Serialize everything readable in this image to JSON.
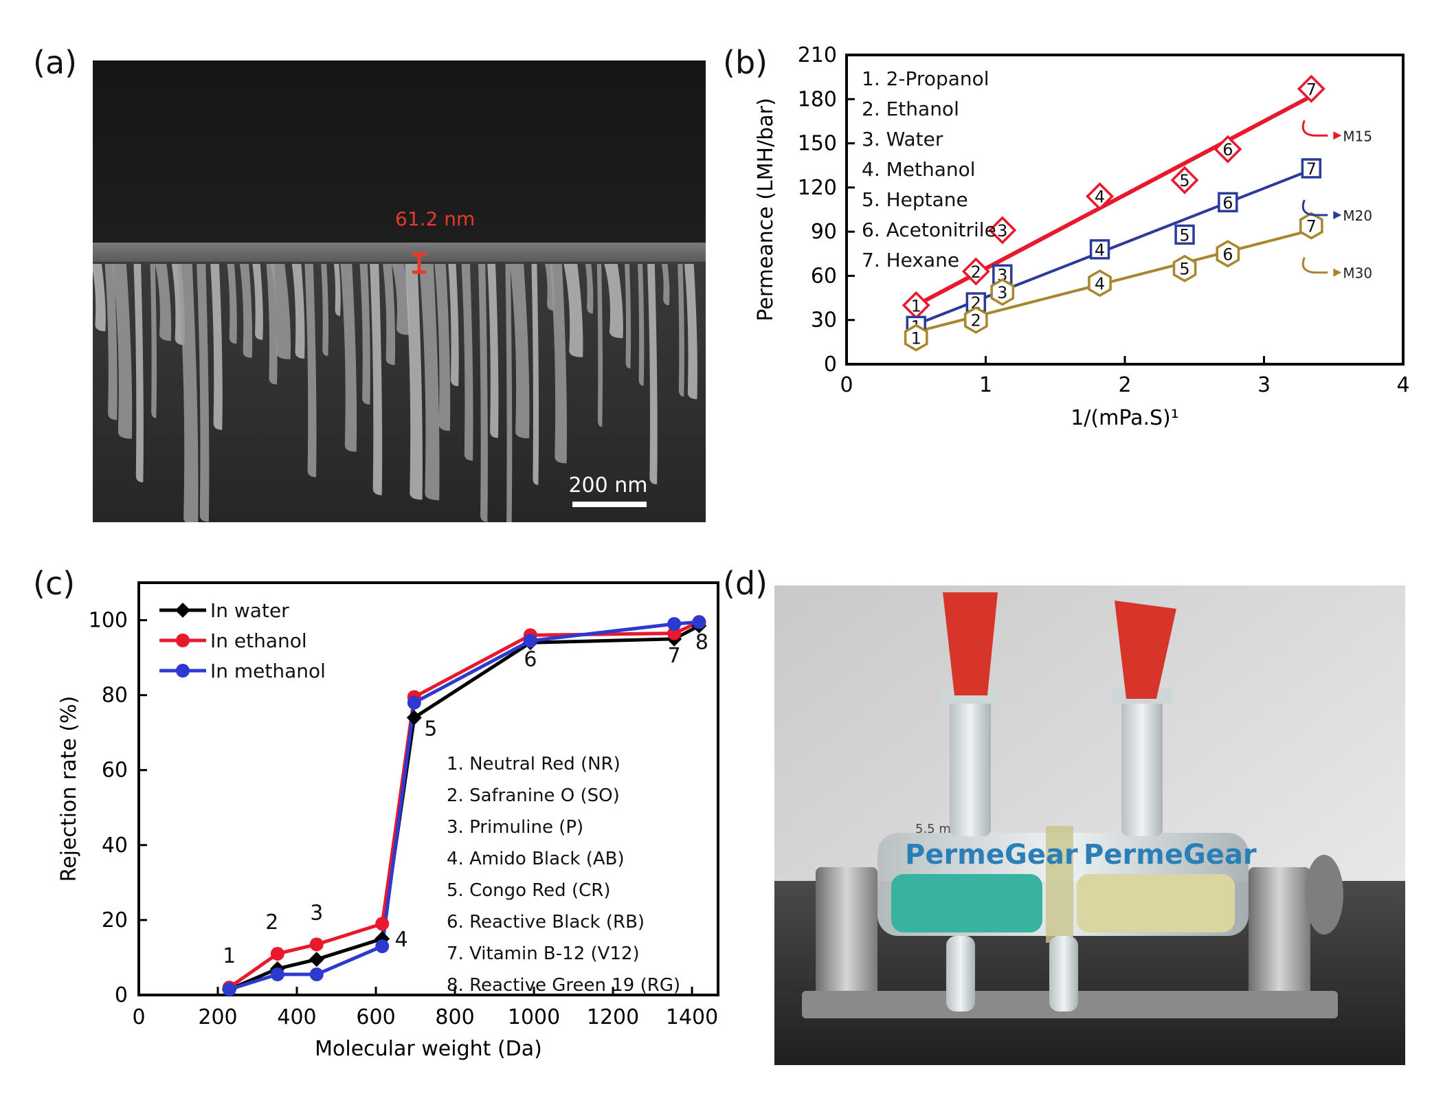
{
  "panels": {
    "a": "(a)",
    "b": "(b)",
    "c": "(c)",
    "d": "(d)"
  },
  "sem": {
    "thickness_label": "61.2 nm",
    "scale_label": "200 nm",
    "annotation_color": "#e8392b"
  },
  "photo": {
    "device_text": "PermeGear",
    "vessel_mark": "5.5 ml",
    "stopper_color": "#d8352a",
    "left_solution_color": "#37b3a0",
    "right_solution_color": "#d9d6a2"
  },
  "chart_data": [
    {
      "panel": "(b)",
      "type": "scatter",
      "xlabel": "1/(mPa.S)¹",
      "ylabel": "Permeance (LMH/bar)",
      "xlim": [
        0,
        4
      ],
      "ylim": [
        0,
        210
      ],
      "xticks": [
        "0",
        "1",
        "2",
        "3",
        "4"
      ],
      "yticks": [
        "0",
        "30",
        "60",
        "90",
        "120",
        "150",
        "180",
        "210"
      ],
      "legend_items": [
        "1. 2-Propanol",
        "2. Ethanol",
        "3. Water",
        "4. Methanol",
        "5. Heptane",
        "6. Acetonitrile",
        "7. Hexane"
      ],
      "legend_position": "top-left",
      "series": [
        {
          "name": "M15",
          "color": "#e8192c",
          "marker": "diamond",
          "points": [
            {
              "label": "1",
              "x": 0.5,
              "y": 40
            },
            {
              "label": "2",
              "x": 0.93,
              "y": 63
            },
            {
              "label": "3",
              "x": 1.12,
              "y": 91
            },
            {
              "label": "4",
              "x": 1.82,
              "y": 114
            },
            {
              "label": "5",
              "x": 2.43,
              "y": 125
            },
            {
              "label": "6",
              "x": 2.74,
              "y": 146
            },
            {
              "label": "7",
              "x": 3.34,
              "y": 187
            }
          ],
          "fit": [
            [
              0.5,
              40
            ],
            [
              3.34,
              182
            ]
          ]
        },
        {
          "name": "M20",
          "color": "#2c3a9c",
          "marker": "square",
          "points": [
            {
              "label": "1",
              "x": 0.5,
              "y": 26
            },
            {
              "label": "2",
              "x": 0.93,
              "y": 42
            },
            {
              "label": "3",
              "x": 1.12,
              "y": 61
            },
            {
              "label": "4",
              "x": 1.82,
              "y": 78
            },
            {
              "label": "5",
              "x": 2.43,
              "y": 88
            },
            {
              "label": "6",
              "x": 2.74,
              "y": 110
            },
            {
              "label": "7",
              "x": 3.34,
              "y": 133
            }
          ],
          "fit": [
            [
              0.5,
              27
            ],
            [
              3.34,
              132
            ]
          ]
        },
        {
          "name": "M30",
          "color": "#a8862c",
          "marker": "hexagon",
          "points": [
            {
              "label": "1",
              "x": 0.5,
              "y": 18
            },
            {
              "label": "2",
              "x": 0.93,
              "y": 30
            },
            {
              "label": "3",
              "x": 1.12,
              "y": 49
            },
            {
              "label": "4",
              "x": 1.82,
              "y": 55
            },
            {
              "label": "5",
              "x": 2.43,
              "y": 65
            },
            {
              "label": "6",
              "x": 2.74,
              "y": 75
            },
            {
              "label": "7",
              "x": 3.34,
              "y": 94
            }
          ],
          "fit": [
            [
              0.5,
              22
            ],
            [
              3.34,
              91
            ]
          ]
        }
      ]
    },
    {
      "panel": "(c)",
      "type": "line",
      "xlabel": "Molecular weight (Da)",
      "ylabel": "Rejection rate (%)",
      "xlim": [
        0,
        1400
      ],
      "ylim": [
        0,
        100
      ],
      "xticks": [
        "0",
        "200",
        "400",
        "600",
        "800",
        "1000",
        "1200",
        "1400"
      ],
      "yticks": [
        "0",
        "20",
        "40",
        "60",
        "80",
        "100"
      ],
      "legend_position": "top-left",
      "x": [
        229,
        351,
        450,
        616,
        697,
        991,
        1355,
        1418
      ],
      "point_labels": [
        "1",
        "2",
        "3",
        "4",
        "5",
        "6",
        "7",
        "8"
      ],
      "series": [
        {
          "name": "In water",
          "color": "#000000",
          "marker": "diamond",
          "values": [
            1.5,
            7,
            9.5,
            15,
            74,
            94,
            95,
            98.5
          ]
        },
        {
          "name": "In ethanol",
          "color": "#e8192c",
          "marker": "circle",
          "values": [
            2,
            11,
            13.5,
            19,
            79.5,
            96,
            96.5,
            99.5
          ]
        },
        {
          "name": "In methanol",
          "color": "#2c3ad0",
          "marker": "circle",
          "values": [
            1.5,
            5.5,
            5.5,
            13,
            78,
            94.5,
            99,
            99.5
          ]
        }
      ],
      "annotation_list": [
        "1. Neutral Red (NR)",
        "2. Safranine O (SO)",
        "3. Primuline (P)",
        "4. Amido Black (AB)",
        "5. Congo Red (CR)",
        "6. Reactive Black (RB)",
        "7. Vitamin B-12 (V12)",
        "8. Reactive Green 19 (RG)"
      ]
    }
  ]
}
